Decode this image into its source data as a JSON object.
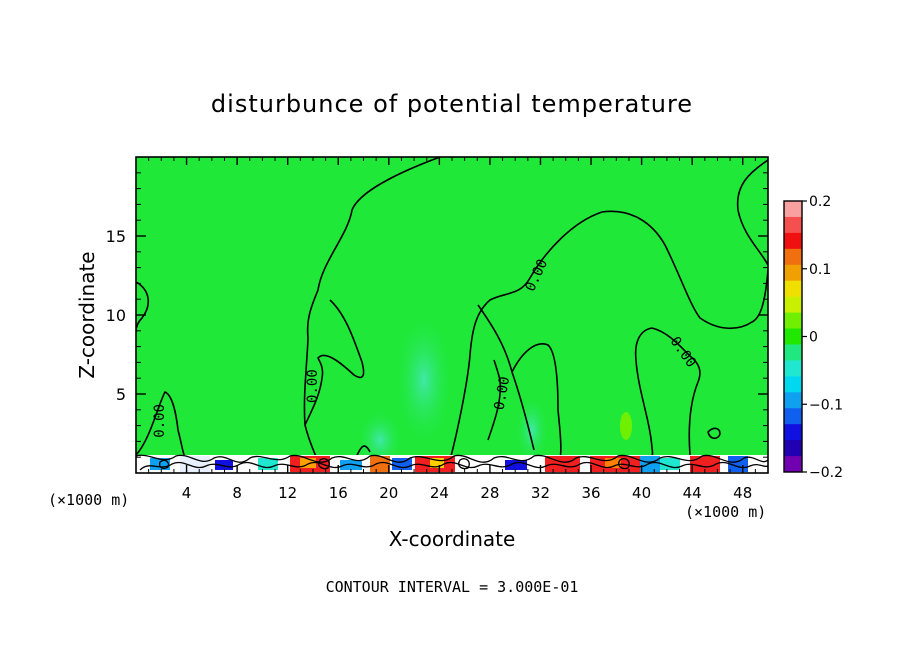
{
  "chart_data": {
    "type": "heatmap",
    "title": "disturbunce of potential temperature",
    "xlabel": "X-coordinate",
    "ylabel": "Z-coordinate",
    "x_unit_left": "(×1000 m)",
    "x_unit_right": "(×1000 m)",
    "xlim": [
      0,
      50
    ],
    "ylim": [
      0,
      20
    ],
    "x_ticks": [
      4,
      8,
      12,
      16,
      20,
      24,
      28,
      32,
      36,
      40,
      44,
      48
    ],
    "y_ticks": [
      5,
      10,
      15
    ],
    "contour_labels": [
      {
        "text": "0.00",
        "x": 2.2,
        "z": 3.3,
        "angle": -90
      },
      {
        "text": "0.00",
        "x": 14.3,
        "z": 5.5,
        "angle": -90
      },
      {
        "text": "0.00",
        "x": 29.3,
        "z": 5.0,
        "angle": -80
      },
      {
        "text": "0.00",
        "x": 32.0,
        "z": 12.4,
        "angle": -65
      },
      {
        "text": "0.00",
        "x": 43.0,
        "z": 7.5,
        "angle": 55
      }
    ],
    "contour_interval_text": "CONTOUR INTERVAL = 3.000E-01",
    "colorbar": {
      "min": -0.2,
      "max": 0.2,
      "tick_labels": [
        "0.2",
        "0.1",
        "0",
        "−0.1",
        "−0.2"
      ],
      "tick_values": [
        0.2,
        0.1,
        0,
        -0.1,
        -0.2
      ],
      "colors": [
        "#f9a0a0",
        "#f45050",
        "#f01010",
        "#f07010",
        "#f0a000",
        "#f0e000",
        "#c8f000",
        "#70f000",
        "#20e800",
        "#20e880",
        "#20e8d0",
        "#00d8f0",
        "#10a0f0",
        "#1060f0",
        "#1010e0",
        "#2000b0",
        "#7000b0"
      ]
    },
    "grid": false,
    "legend": "colorbar-right"
  }
}
